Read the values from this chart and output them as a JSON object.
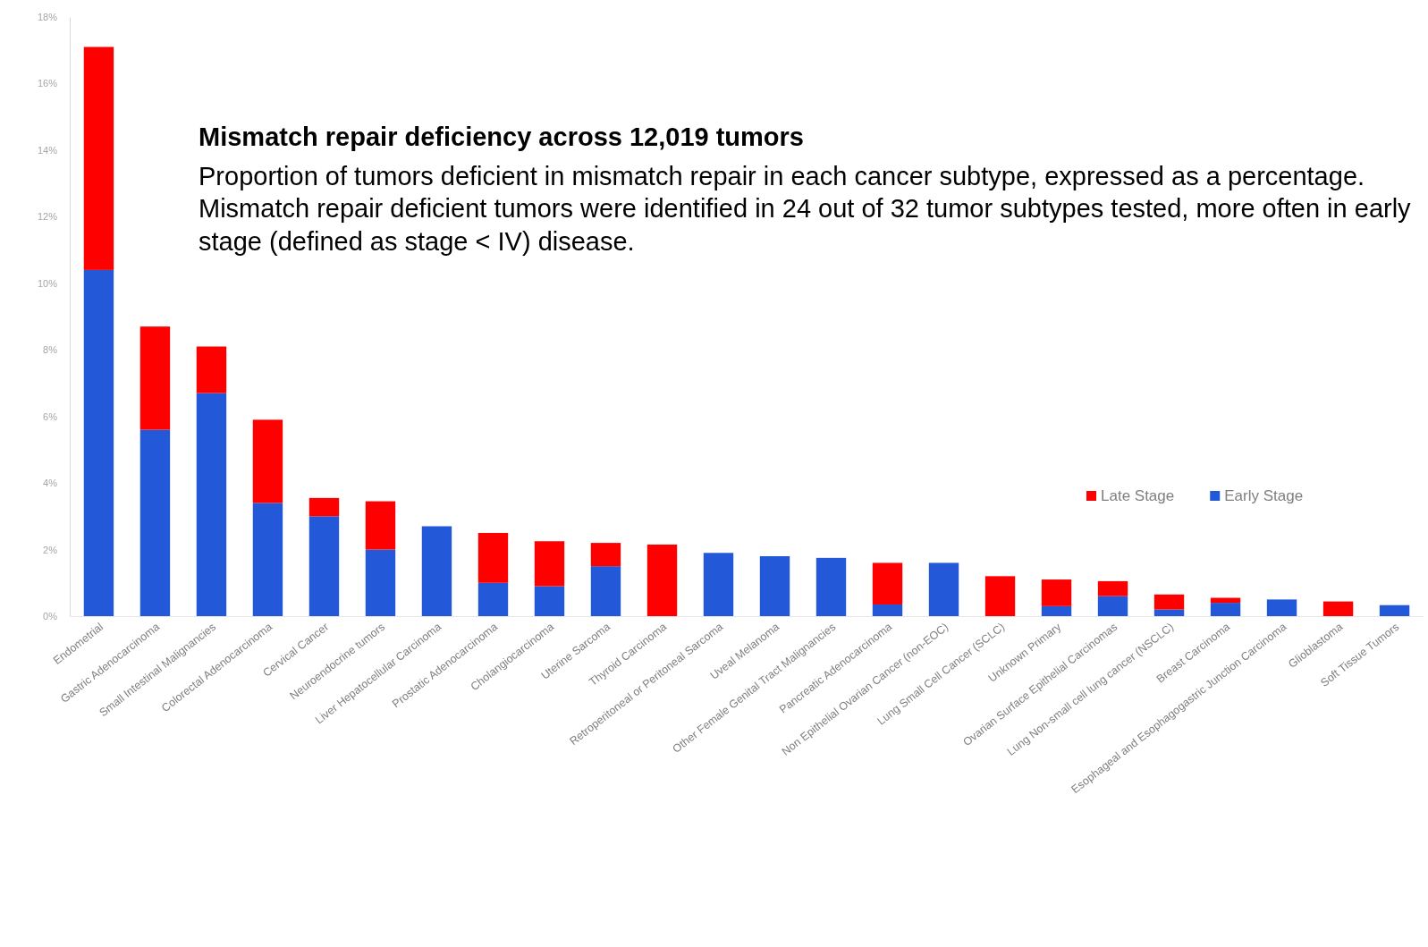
{
  "chart_data": {
    "type": "bar",
    "stacked": true,
    "title": "Mismatch repair deficiency across 12,019 tumors",
    "subtitle": "Proportion of tumors deficient in mismatch repair in each cancer subtype, expressed as a percentage. Mismatch repair deficient tumors were identified in 24 out of 32 tumor subtypes tested, more often in early stage (defined as stage < IV) disease.",
    "categories": [
      "Endometrial",
      "Gastric Adenocarcinoma",
      "Small Intestinal Malignancies",
      "Colorectal Adenocarcinoma",
      "Cervical Cancer",
      "Neuroendocrine tumors",
      "Liver Hepatocellular Carcinoma",
      "Prostatic Adenocarcinoma",
      "Cholangiocarcinoma",
      "Uterine Sarcoma",
      "Thyroid Carcinoma",
      "Retroperitoneal or Peritoneal Sarcoma",
      "Uveal Melanoma",
      "Other Female Genital Tract Malignancies",
      "Pancreatic Adenocarcinoma",
      "Non Epithelial Ovarian Cancer (non-EOC)",
      "Lung Small Cell Cancer (SCLC)",
      "Unknown Primary",
      "Ovarian Surface Epithelial Carcinomas",
      "Lung Non-small cell lung cancer (NSCLC)",
      "Breast Carcinoma",
      "Esophageal and Esophagogastric Junction Carcinoma",
      "Glioblastoma",
      "Soft Tissue Tumors"
    ],
    "series": [
      {
        "name": "Early Stage",
        "color": "#2358d8",
        "values": [
          10.4,
          5.6,
          6.7,
          3.4,
          3.0,
          2.0,
          2.7,
          1.0,
          0.9,
          1.5,
          0,
          1.9,
          1.8,
          1.75,
          0.35,
          1.6,
          0,
          0.3,
          0.6,
          0.2,
          0.4,
          0.5,
          0,
          0.33
        ]
      },
      {
        "name": "Late Stage",
        "color": "#ff0000",
        "values": [
          6.7,
          3.1,
          1.4,
          2.5,
          0.55,
          1.45,
          0,
          1.5,
          1.35,
          0.7,
          2.15,
          0,
          0,
          0,
          1.25,
          0,
          1.2,
          0.8,
          0.45,
          0.45,
          0.15,
          0,
          0.44,
          0
        ]
      }
    ],
    "ylim": [
      0,
      18
    ],
    "yticks": [
      {
        "value": 0,
        "label": "0%"
      },
      {
        "value": 2,
        "label": "2%"
      },
      {
        "value": 4,
        "label": "4%"
      },
      {
        "value": 6,
        "label": "6%"
      },
      {
        "value": 8,
        "label": "8%"
      },
      {
        "value": 10,
        "label": "10%"
      },
      {
        "value": 12,
        "label": "12%"
      },
      {
        "value": 14,
        "label": "14%"
      },
      {
        "value": 16,
        "label": "16%"
      },
      {
        "value": 18,
        "label": "18%"
      }
    ],
    "grid": false,
    "legend": "right"
  }
}
